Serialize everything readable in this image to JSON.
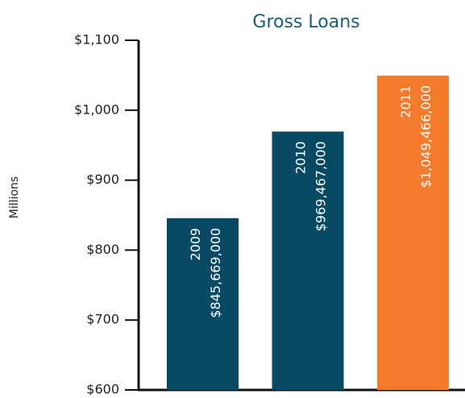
{
  "chart_data": {
    "type": "bar",
    "title": "Gross Loans",
    "y_label": "Millions",
    "categories": [
      "2009",
      "2010",
      "2011"
    ],
    "values": [
      845.669,
      969.467,
      1049.466
    ],
    "value_labels": [
      "$845,669,000",
      "$969,467,000",
      "$1,049,466,000"
    ],
    "colors": [
      "#084a63",
      "#084a63",
      "#f47b2c"
    ],
    "ylim": [
      600,
      1100
    ],
    "yticks": [
      {
        "value": 600,
        "label": "$600"
      },
      {
        "value": 700,
        "label": "$700"
      },
      {
        "value": 800,
        "label": "$800"
      },
      {
        "value": 900,
        "label": "$900"
      },
      {
        "value": 1000,
        "label": "$1,000"
      },
      {
        "value": 1100,
        "label": "$1,100"
      }
    ],
    "grid": false
  }
}
